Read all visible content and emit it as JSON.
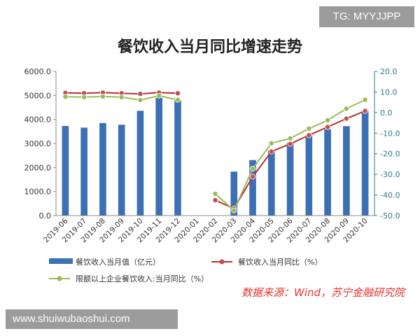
{
  "watermark_top": "TG: MYYJJPP",
  "watermark_bottom": "www.shuiwubaoshui.com",
  "source": "数据来源：Wind，苏宁金融研究院",
  "colors": {
    "bar": "#3c6fb4",
    "line_main": "#b8302e",
    "marker_main": "#c0504d",
    "line_limit": "#9bbb59",
    "marker_limit": "#9bbb59",
    "right_axis": "#2a7a8c"
  },
  "chart_data": {
    "type": "bar",
    "title": "餐饮收入当月同比增速走势",
    "categories": [
      "2019-06",
      "2019-07",
      "2019-08",
      "2019-09",
      "2019-10",
      "2019-11",
      "2019-12",
      "2020-01",
      "2020-02",
      "2020-03",
      "2020-04",
      "2020-05",
      "2020-06",
      "2020-07",
      "2020-08",
      "2020-09",
      "2020-10"
    ],
    "y_left": {
      "min": 0,
      "max": 6000,
      "ticks": [
        "0.0",
        "1000.0",
        "2000.0",
        "3000.0",
        "4000.0",
        "5000.0",
        "6000.0"
      ]
    },
    "y_right": {
      "min": -50,
      "max": 20,
      "ticks": [
        "-50.0",
        "-40.0",
        "-30.0",
        "-20.0",
        "-10.0",
        "0.0",
        "10.0",
        "20.0"
      ]
    },
    "series": [
      {
        "name": "餐饮收入当月值（亿元）",
        "type": "bar",
        "axis": "left",
        "values": [
          3730,
          3660,
          3850,
          3780,
          4360,
          4900,
          4800,
          null,
          null,
          1830,
          2310,
          2720,
          3040,
          3330,
          3590,
          3720,
          4350
        ]
      },
      {
        "name": "餐饮收入当月同比（%）",
        "type": "line",
        "axis": "right",
        "values": [
          9.6,
          9.4,
          9.7,
          9.4,
          9.1,
          9.7,
          9.4,
          null,
          -42.5,
          -46.6,
          -31.1,
          -18.9,
          -15.2,
          -11.0,
          -7.0,
          -2.9,
          0.8
        ]
      },
      {
        "name": "限额以上企业餐饮收入:当月同比（%）",
        "type": "line",
        "axis": "right",
        "values": [
          7.7,
          7.5,
          7.8,
          7.5,
          6.1,
          8.2,
          6.2,
          null,
          -39.4,
          -47.5,
          -27.2,
          -14.9,
          -12.5,
          -7.8,
          -3.7,
          1.9,
          6.2
        ]
      }
    ],
    "legend_position": "bottom"
  }
}
